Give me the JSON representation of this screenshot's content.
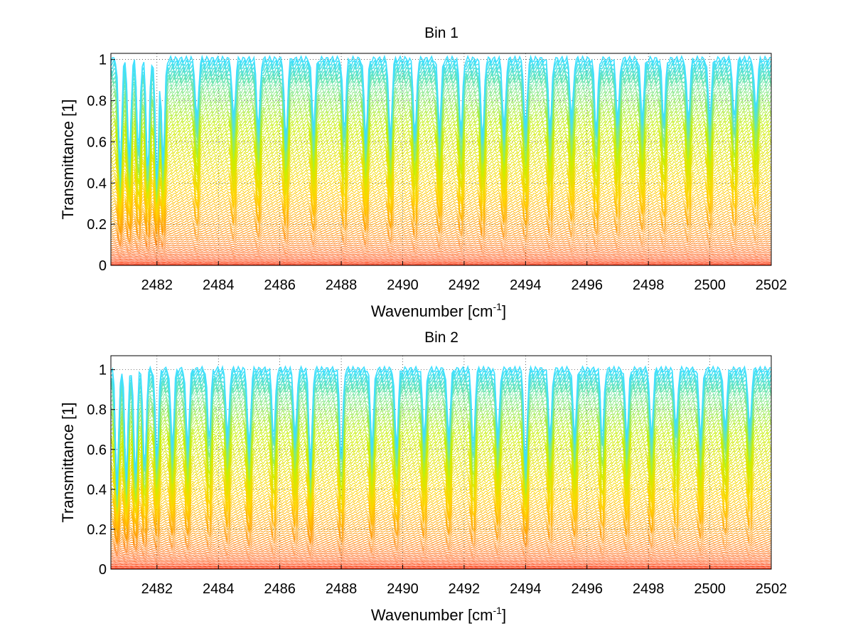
{
  "chart_data": [
    {
      "type": "line",
      "title": "Bin 1",
      "xlabel": "Wavenumber [cm",
      "xlabel_sup": "-1",
      "xlabel_end": "]",
      "ylabel": "Transmittance [1]",
      "xlim": [
        2480.5,
        2502
      ],
      "ylim": [
        0,
        1.03
      ],
      "xticks": [
        2482,
        2484,
        2486,
        2488,
        2490,
        2492,
        2494,
        2496,
        2498,
        2500,
        2502
      ],
      "xtick_labels": [
        "2482",
        "2484",
        "2486",
        "2488",
        "2490",
        "2492",
        "2494",
        "2496",
        "2498",
        "2500",
        "2502"
      ],
      "yticks": [
        0,
        0.2,
        0.4,
        0.6,
        0.8,
        1
      ],
      "ytick_labels": [
        "0",
        "0.2",
        "0.4",
        "0.6",
        "0.8",
        "1"
      ],
      "grid": true,
      "legend": "none",
      "series_count": 80,
      "baseline_range": [
        0,
        1
      ],
      "color_ramp": [
        "#ff2000",
        "#ff8c00",
        "#ffd400",
        "#c8f000",
        "#40e0ff"
      ],
      "absorption_lines": [
        2480.8,
        2481.1,
        2481.4,
        2481.7,
        2482.0,
        2482.2,
        2483.3,
        2484.5,
        2485.3,
        2486.2,
        2487.1,
        2488.1,
        2488.8,
        2489.6,
        2490.4,
        2491.2,
        2491.9,
        2492.6,
        2493.3,
        2494.0,
        2494.8,
        2495.5,
        2496.3,
        2497.0,
        2497.8,
        2498.5,
        2499.3,
        2500.0,
        2500.8,
        2501.5
      ],
      "absorption_depths": [
        0.55,
        0.5,
        0.45,
        0.55,
        0.6,
        0.5,
        0.3,
        0.3,
        0.35,
        0.4,
        0.35,
        0.35,
        0.4,
        0.4,
        0.38,
        0.35,
        0.35,
        0.4,
        0.35,
        0.35,
        0.35,
        0.3,
        0.35,
        0.3,
        0.3,
        0.3,
        0.3,
        0.3,
        0.3,
        0.25
      ]
    },
    {
      "type": "line",
      "title": "Bin 2",
      "xlabel": "Wavenumber [cm",
      "xlabel_sup": "-1",
      "xlabel_end": "]",
      "ylabel": "Transmittance [1]",
      "xlim": [
        2480.5,
        2502
      ],
      "ylim": [
        0,
        1.07
      ],
      "xticks": [
        2482,
        2484,
        2486,
        2488,
        2490,
        2492,
        2494,
        2496,
        2498,
        2500,
        2502
      ],
      "xtick_labels": [
        "2482",
        "2484",
        "2486",
        "2488",
        "2490",
        "2492",
        "2494",
        "2496",
        "2498",
        "2500",
        "2502"
      ],
      "yticks": [
        0,
        0.2,
        0.4,
        0.6,
        0.8,
        1
      ],
      "ytick_labels": [
        "0",
        "0.2",
        "0.4",
        "0.6",
        "0.8",
        "1"
      ],
      "grid": true,
      "legend": "none",
      "series_count": 80,
      "baseline_range": [
        0,
        1
      ],
      "color_ramp": [
        "#ff2000",
        "#ff8c00",
        "#ffd400",
        "#c8f000",
        "#40e0ff"
      ],
      "absorption_lines": [
        2480.7,
        2481.0,
        2481.3,
        2481.6,
        2482.0,
        2482.5,
        2483.0,
        2483.7,
        2484.3,
        2485.0,
        2485.8,
        2486.5,
        2487.0,
        2488.0,
        2489.0,
        2489.8,
        2490.7,
        2491.5,
        2492.3,
        2493.1,
        2494.0,
        2494.8,
        2495.6,
        2496.5,
        2497.3,
        2498.1,
        2498.9,
        2499.7,
        2500.5,
        2501.3
      ],
      "absorption_depths": [
        0.6,
        0.55,
        0.55,
        0.5,
        0.45,
        0.4,
        0.4,
        0.35,
        0.35,
        0.4,
        0.35,
        0.35,
        0.5,
        0.45,
        0.4,
        0.4,
        0.35,
        0.35,
        0.4,
        0.35,
        0.5,
        0.35,
        0.35,
        0.35,
        0.35,
        0.35,
        0.3,
        0.35,
        0.3,
        0.3
      ]
    }
  ]
}
